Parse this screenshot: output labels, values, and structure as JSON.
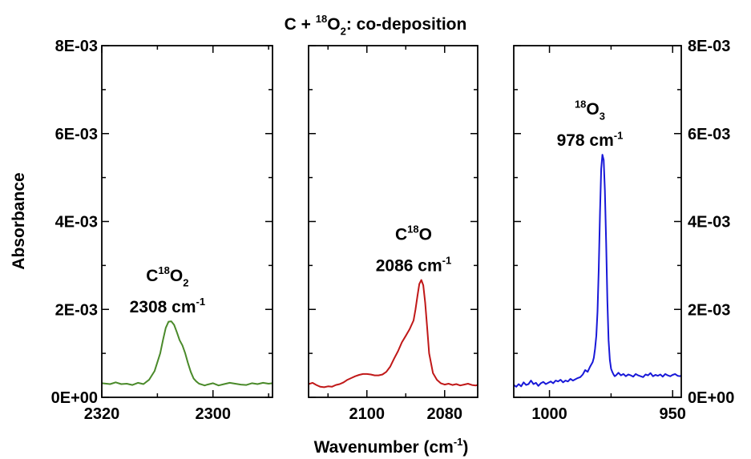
{
  "chart_data": {
    "type": "line",
    "title": {
      "base": "C + ",
      "sup": "18",
      "mid": "O",
      "sub": "2",
      "tail": ": co-deposition"
    },
    "xlabel": {
      "base": "Wavenumber (cm",
      "sup": "-1",
      "tail": ")"
    },
    "ylabel": "Absorbance",
    "ylim": [
      0,
      0.008
    ],
    "y_ticks": [
      {
        "value": 0,
        "label": "0E+00"
      },
      {
        "value": 0.002,
        "label": "2E-03"
      },
      {
        "value": 0.004,
        "label": "4E-03"
      },
      {
        "value": 0.006,
        "label": "6E-03"
      },
      {
        "value": 0.008,
        "label": "8E-03"
      }
    ],
    "grid": false,
    "panels": [
      {
        "xlim": [
          2320,
          2289.3
        ],
        "color": "#4a8a2a",
        "x_ticks": [
          {
            "value": 2320,
            "label": "2320"
          },
          {
            "value": 2300,
            "label": "2300"
          }
        ],
        "minor_ticks": [
          2310,
          2290
        ],
        "annotation": {
          "x": 2308.2,
          "formula": {
            "base": "C",
            "sup": "18",
            "mid": "O",
            "sub": "2"
          },
          "wavenumber": {
            "base": "2308 cm",
            "sup": "-1"
          }
        },
        "series": {
          "x": [
            2320,
            2318.5,
            2317.5,
            2316.5,
            2315.5,
            2314.5,
            2313.5,
            2312.5,
            2311.5,
            2310.5,
            2309.5,
            2309,
            2308.5,
            2308,
            2307.5,
            2307,
            2306.5,
            2306,
            2305.5,
            2305,
            2304.5,
            2304,
            2303.5,
            2303,
            2302.5,
            2302,
            2301.5,
            2301,
            2300,
            2299,
            2298,
            2297,
            2296,
            2295,
            2294,
            2293,
            2292,
            2291,
            2290,
            2289.3
          ],
          "y": [
            0.00032,
            0.0003,
            0.00034,
            0.0003,
            0.00031,
            0.00028,
            0.00033,
            0.0003,
            0.0004,
            0.0006,
            0.001,
            0.0013,
            0.00158,
            0.00172,
            0.00173,
            0.00165,
            0.00148,
            0.0013,
            0.00118,
            0.001,
            0.00078,
            0.00058,
            0.00043,
            0.00036,
            0.00031,
            0.00029,
            0.00027,
            0.00029,
            0.00032,
            0.00027,
            0.0003,
            0.00033,
            0.00031,
            0.00029,
            0.00028,
            0.00032,
            0.0003,
            0.00033,
            0.00031,
            0.00032
          ]
        }
      },
      {
        "xlim": [
          2115,
          2071.5
        ],
        "color": "#c01818",
        "x_ticks": [
          {
            "value": 2100,
            "label": "2100"
          },
          {
            "value": 2080,
            "label": "2080"
          }
        ],
        "minor_ticks": [
          2110,
          2090
        ],
        "annotation": {
          "x": 2088.0,
          "formula": {
            "base": "C",
            "sup": "18",
            "mid": "O",
            "sub": "",
            "tail": ""
          },
          "wavenumber": {
            "base": "2086 cm",
            "sup": "-1"
          }
        },
        "series": {
          "x": [
            2115,
            2114,
            2113,
            2112,
            2111,
            2110,
            2109,
            2108,
            2107,
            2106,
            2105,
            2104,
            2103,
            2102,
            2101,
            2100,
            2099,
            2098,
            2097,
            2096,
            2095,
            2094,
            2093,
            2092,
            2091,
            2090,
            2089,
            2088,
            2087.5,
            2087,
            2086.5,
            2086,
            2085.5,
            2085,
            2084.5,
            2084,
            2083,
            2082,
            2081,
            2080,
            2079,
            2078,
            2077,
            2076,
            2075,
            2074,
            2073,
            2072,
            2071.5
          ],
          "y": [
            0.0003,
            0.00033,
            0.00028,
            0.00024,
            0.00023,
            0.00025,
            0.00024,
            0.00028,
            0.0003,
            0.00034,
            0.0004,
            0.00044,
            0.00048,
            0.00051,
            0.00053,
            0.00053,
            0.00052,
            0.0005,
            0.0005,
            0.00052,
            0.00058,
            0.0007,
            0.00088,
            0.00105,
            0.00125,
            0.0014,
            0.00155,
            0.00175,
            0.002,
            0.0023,
            0.00258,
            0.00267,
            0.00255,
            0.00215,
            0.0016,
            0.001,
            0.00055,
            0.0004,
            0.00032,
            0.00029,
            0.00031,
            0.00028,
            0.0003,
            0.00027,
            0.00029,
            0.00031,
            0.00028,
            0.00027,
            0.00028
          ]
        }
      },
      {
        "xlim": [
          1014.5,
          946.5
        ],
        "color": "#1818d8",
        "x_ticks": [
          {
            "value": 1000,
            "label": "1000"
          },
          {
            "value": 950,
            "label": "950"
          }
        ],
        "minor_ticks": [
          975
        ],
        "annotation": {
          "x": 983.6,
          "formula": {
            "base": "",
            "sup": "18",
            "mid": "O",
            "sub": "3",
            "tail": ""
          },
          "wavenumber": {
            "base": "978 cm",
            "sup": "-1"
          }
        },
        "series": {
          "x": [
            1014.5,
            1013.5,
            1012.5,
            1011.5,
            1010.5,
            1009.5,
            1008.5,
            1007.5,
            1006.5,
            1005.5,
            1004.5,
            1003.5,
            1002.5,
            1001.5,
            1000.5,
            999.5,
            998.5,
            997.5,
            996.5,
            995.5,
            994.5,
            993.5,
            992.5,
            991.5,
            990.5,
            989.5,
            988.5,
            987.5,
            986.5,
            985.5,
            984.5,
            983.5,
            982.5,
            982,
            981.5,
            981,
            980.5,
            980,
            979.5,
            979,
            978.5,
            978,
            977.5,
            977,
            976.5,
            976,
            975.5,
            975,
            974.5,
            974,
            973.5,
            973,
            972,
            971,
            970,
            969,
            968,
            967,
            966,
            965,
            964,
            963,
            962,
            961,
            960,
            959,
            958,
            957,
            956,
            955,
            954,
            953,
            952,
            951,
            950,
            949,
            948,
            947,
            946.5
          ],
          "y": [
            0.00028,
            0.00024,
            0.0003,
            0.00025,
            0.00034,
            0.00028,
            0.0003,
            0.00038,
            0.0003,
            0.00033,
            0.00026,
            0.00032,
            0.00035,
            0.0003,
            0.00033,
            0.00036,
            0.00032,
            0.00038,
            0.00036,
            0.0004,
            0.00034,
            0.00038,
            0.00036,
            0.00042,
            0.00038,
            0.00041,
            0.00044,
            0.00046,
            0.00052,
            0.00062,
            0.00058,
            0.0007,
            0.0008,
            0.0009,
            0.0011,
            0.0014,
            0.00195,
            0.0029,
            0.0042,
            0.0052,
            0.00552,
            0.0054,
            0.0047,
            0.0035,
            0.0022,
            0.0013,
            0.00085,
            0.00065,
            0.00058,
            0.00052,
            0.00048,
            0.0005,
            0.00056,
            0.0005,
            0.00053,
            0.00048,
            0.00052,
            0.0005,
            0.00047,
            0.00053,
            0.0005,
            0.00048,
            0.00046,
            0.00052,
            0.0005,
            0.00055,
            0.00048,
            0.00051,
            0.00049,
            0.00052,
            0.00047,
            0.00053,
            0.0005,
            0.00048,
            0.00051,
            0.00053,
            0.00049,
            0.00048,
            0.0005
          ]
        }
      }
    ]
  }
}
